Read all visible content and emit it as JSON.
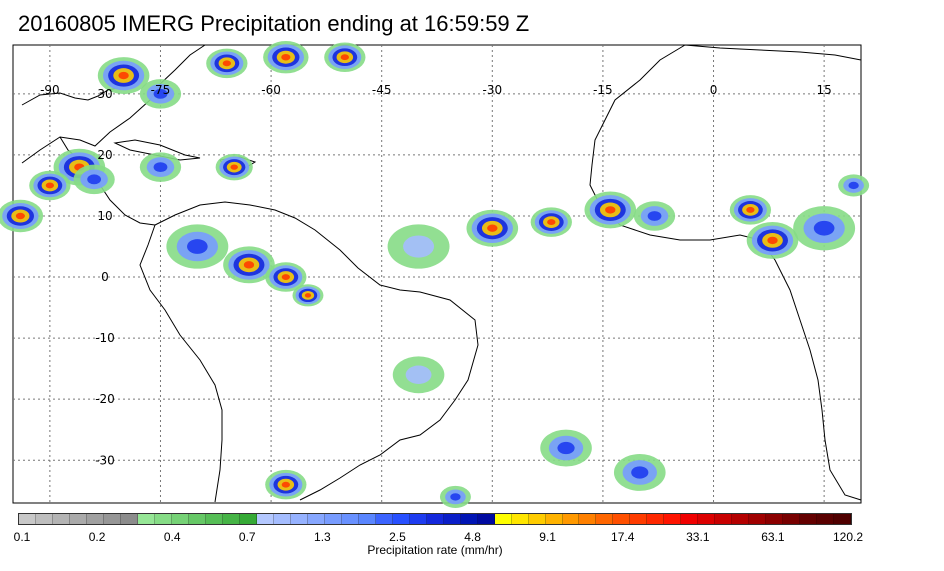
{
  "title": "20160805 IMERG Precipitation ending at 16:59:59 Z",
  "map": {
    "lon_range": [
      -95,
      20
    ],
    "lat_range": [
      -37,
      38
    ],
    "lon_ticks": [
      {
        "label": "-90",
        "value": -90
      },
      {
        "label": "-75",
        "value": -75
      },
      {
        "label": "-60",
        "value": -60
      },
      {
        "label": "-45",
        "value": -45
      },
      {
        "label": "-30",
        "value": -30
      },
      {
        "label": "-15",
        "value": -15
      },
      {
        "label": "0",
        "value": 0
      },
      {
        "label": "15",
        "value": 15
      }
    ],
    "lat_ticks": [
      {
        "label": "30",
        "value": 30
      },
      {
        "label": "20",
        "value": 20
      },
      {
        "label": "10",
        "value": 10
      },
      {
        "label": "0",
        "value": 0
      },
      {
        "label": "-10",
        "value": -10
      },
      {
        "label": "-20",
        "value": -20
      },
      {
        "label": "-30",
        "value": -30
      }
    ],
    "gridlines": "dotted",
    "colors": {
      "land_outline": "#000000",
      "grid": "#777777",
      "frame": "#000000"
    }
  },
  "colorbar": {
    "title": "Precipitation rate (mm/hr)",
    "labels": [
      "0.1",
      "0.2",
      "0.4",
      "0.7",
      "1.3",
      "2.5",
      "4.8",
      "9.1",
      "17.4",
      "33.1",
      "63.1",
      "120.2"
    ],
    "colors": [
      "#c8c8c8",
      "#bebebe",
      "#b4b4b4",
      "#aaaaaa",
      "#a0a0a0",
      "#969696",
      "#8c8c8c",
      "#96e696",
      "#86dc86",
      "#76d276",
      "#66c866",
      "#56be56",
      "#46b446",
      "#36aa36",
      "#b4c8ff",
      "#a5bdff",
      "#96b2ff",
      "#87a7ff",
      "#789cff",
      "#6991ff",
      "#5a86ff",
      "#3c64ff",
      "#2850ff",
      "#1e3cf0",
      "#1428dc",
      "#0a1ec8",
      "#0014b4",
      "#000aa0",
      "#ffff00",
      "#ffe600",
      "#ffcc00",
      "#ffb300",
      "#ff9900",
      "#ff8000",
      "#ff6600",
      "#ff5000",
      "#ff3c00",
      "#ff2800",
      "#ff1400",
      "#f00000",
      "#dc0000",
      "#c80000",
      "#b40000",
      "#a00000",
      "#8c0000",
      "#780000",
      "#640000",
      "#5a0000",
      "#500000"
    ]
  },
  "precip_cells": [
    {
      "lon": -80,
      "lat": 33,
      "r": 2.5,
      "level": "heavy"
    },
    {
      "lon": -75,
      "lat": 30,
      "r": 2,
      "level": "moderate"
    },
    {
      "lon": -66,
      "lat": 35,
      "r": 2,
      "level": "heavy"
    },
    {
      "lon": -58,
      "lat": 36,
      "r": 2.2,
      "level": "heavy"
    },
    {
      "lon": -50,
      "lat": 36,
      "r": 2,
      "level": "heavy"
    },
    {
      "lon": -86,
      "lat": 18,
      "r": 2.5,
      "level": "heavy"
    },
    {
      "lon": -90,
      "lat": 15,
      "r": 2,
      "level": "heavy"
    },
    {
      "lon": -94,
      "lat": 10,
      "r": 2.2,
      "level": "heavy"
    },
    {
      "lon": -84,
      "lat": 16,
      "r": 2,
      "level": "moderate"
    },
    {
      "lon": -75,
      "lat": 18,
      "r": 2,
      "level": "moderate"
    },
    {
      "lon": -65,
      "lat": 18,
      "r": 1.8,
      "level": "heavy"
    },
    {
      "lon": -70,
      "lat": 5,
      "r": 3,
      "level": "moderate"
    },
    {
      "lon": -63,
      "lat": 2,
      "r": 2.5,
      "level": "heavy"
    },
    {
      "lon": -58,
      "lat": 0,
      "r": 2,
      "level": "heavy"
    },
    {
      "lon": -55,
      "lat": -3,
      "r": 1.5,
      "level": "heavy"
    },
    {
      "lon": -40,
      "lat": 5,
      "r": 3,
      "level": "light"
    },
    {
      "lon": -30,
      "lat": 8,
      "r": 2.5,
      "level": "heavy"
    },
    {
      "lon": -22,
      "lat": 9,
      "r": 2,
      "level": "heavy"
    },
    {
      "lon": -14,
      "lat": 11,
      "r": 2.5,
      "level": "heavy"
    },
    {
      "lon": -8,
      "lat": 10,
      "r": 2,
      "level": "moderate"
    },
    {
      "lon": 5,
      "lat": 11,
      "r": 2,
      "level": "heavy"
    },
    {
      "lon": 8,
      "lat": 6,
      "r": 2.5,
      "level": "heavy"
    },
    {
      "lon": 15,
      "lat": 8,
      "r": 3,
      "level": "moderate"
    },
    {
      "lon": 19,
      "lat": 15,
      "r": 1.5,
      "level": "moderate"
    },
    {
      "lon": -40,
      "lat": -16,
      "r": 2.5,
      "level": "light"
    },
    {
      "lon": -58,
      "lat": -34,
      "r": 2,
      "level": "heavy"
    },
    {
      "lon": -20,
      "lat": -28,
      "r": 2.5,
      "level": "moderate"
    },
    {
      "lon": -10,
      "lat": -32,
      "r": 2.5,
      "level": "moderate"
    },
    {
      "lon": -35,
      "lat": -36,
      "r": 1.5,
      "level": "moderate"
    }
  ]
}
